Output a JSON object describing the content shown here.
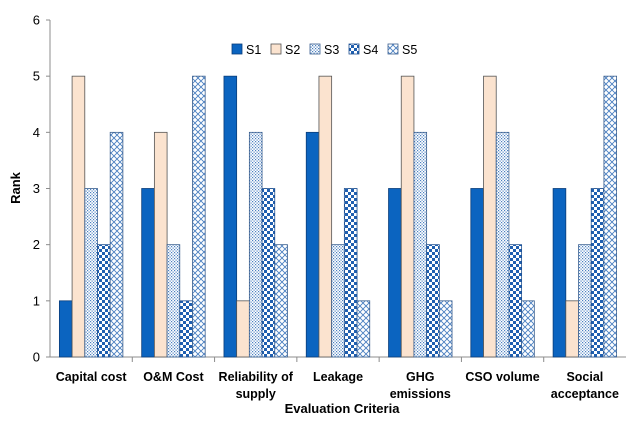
{
  "chart_data": {
    "type": "bar",
    "title": "",
    "xlabel": "Evaluation Criteria",
    "ylabel": "Rank",
    "ylim": [
      0,
      6
    ],
    "yticks": [
      "0",
      "1",
      "2",
      "3",
      "4",
      "5",
      "6"
    ],
    "grid": false,
    "legend_position": "top-center",
    "categories": [
      [
        "Capital cost"
      ],
      [
        "O&M Cost"
      ],
      [
        "Reliability of",
        "supply"
      ],
      [
        "Leakage"
      ],
      [
        "GHG",
        "emissions"
      ],
      [
        "CSO volume"
      ],
      [
        "Social",
        "acceptance"
      ]
    ],
    "series": [
      {
        "name": "S1",
        "values": [
          1,
          3,
          5,
          4,
          3,
          3,
          3
        ],
        "color": "#0b64c0",
        "pattern": "solid"
      },
      {
        "name": "S2",
        "values": [
          5,
          4,
          1,
          5,
          5,
          5,
          1
        ],
        "color": "#fbe3cf",
        "pattern": "solid"
      },
      {
        "name": "S3",
        "values": [
          3,
          2,
          4,
          2,
          4,
          4,
          2
        ],
        "color": "#4a7fc1",
        "pattern": "dots"
      },
      {
        "name": "S4",
        "values": [
          2,
          1,
          3,
          3,
          2,
          2,
          3
        ],
        "color": "#1f5fb0",
        "pattern": "checker"
      },
      {
        "name": "S5",
        "values": [
          4,
          5,
          2,
          1,
          1,
          1,
          5
        ],
        "color": "#4a7fc1",
        "pattern": "crosshatch"
      }
    ]
  }
}
